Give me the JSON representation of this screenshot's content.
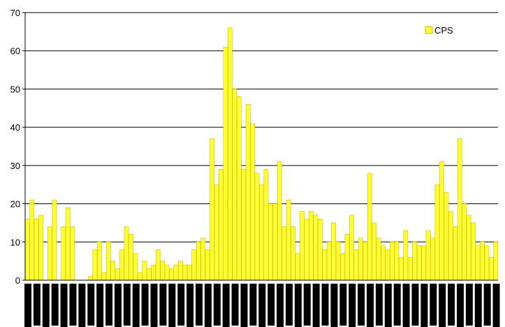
{
  "chart_data": {
    "type": "bar",
    "title": "",
    "xlabel": "",
    "ylabel": "",
    "ylim": [
      0,
      70
    ],
    "yticks": [
      0,
      10,
      20,
      30,
      40,
      50,
      60,
      70
    ],
    "grid": true,
    "legend_position": "top-right",
    "series": [
      {
        "name": "CPS",
        "color": "#ffff33",
        "edge_color": "#d4b800",
        "values": [
          16,
          21,
          16,
          17,
          0,
          14,
          21,
          0,
          14,
          19,
          14,
          0,
          0,
          0,
          1,
          8,
          10,
          2,
          10,
          5,
          3,
          8,
          14,
          12,
          7,
          2,
          5,
          3,
          4,
          8,
          5,
          4,
          3,
          4,
          5,
          4,
          4,
          8,
          10,
          11,
          8,
          37,
          25,
          29,
          61,
          66,
          50,
          48,
          29,
          46,
          41,
          28,
          25,
          29,
          20,
          20,
          31,
          14,
          21,
          14,
          7,
          18,
          16,
          18,
          17,
          16,
          8,
          10,
          15,
          10,
          7,
          12,
          17,
          8,
          11,
          10,
          28,
          15,
          11,
          9,
          8,
          10,
          10,
          6,
          13,
          6,
          10,
          9,
          9,
          13,
          11,
          25,
          31,
          23,
          18,
          14,
          37,
          20,
          17,
          15,
          9,
          10,
          9,
          6,
          10
        ]
      }
    ],
    "category_labels_note": "redacted"
  }
}
